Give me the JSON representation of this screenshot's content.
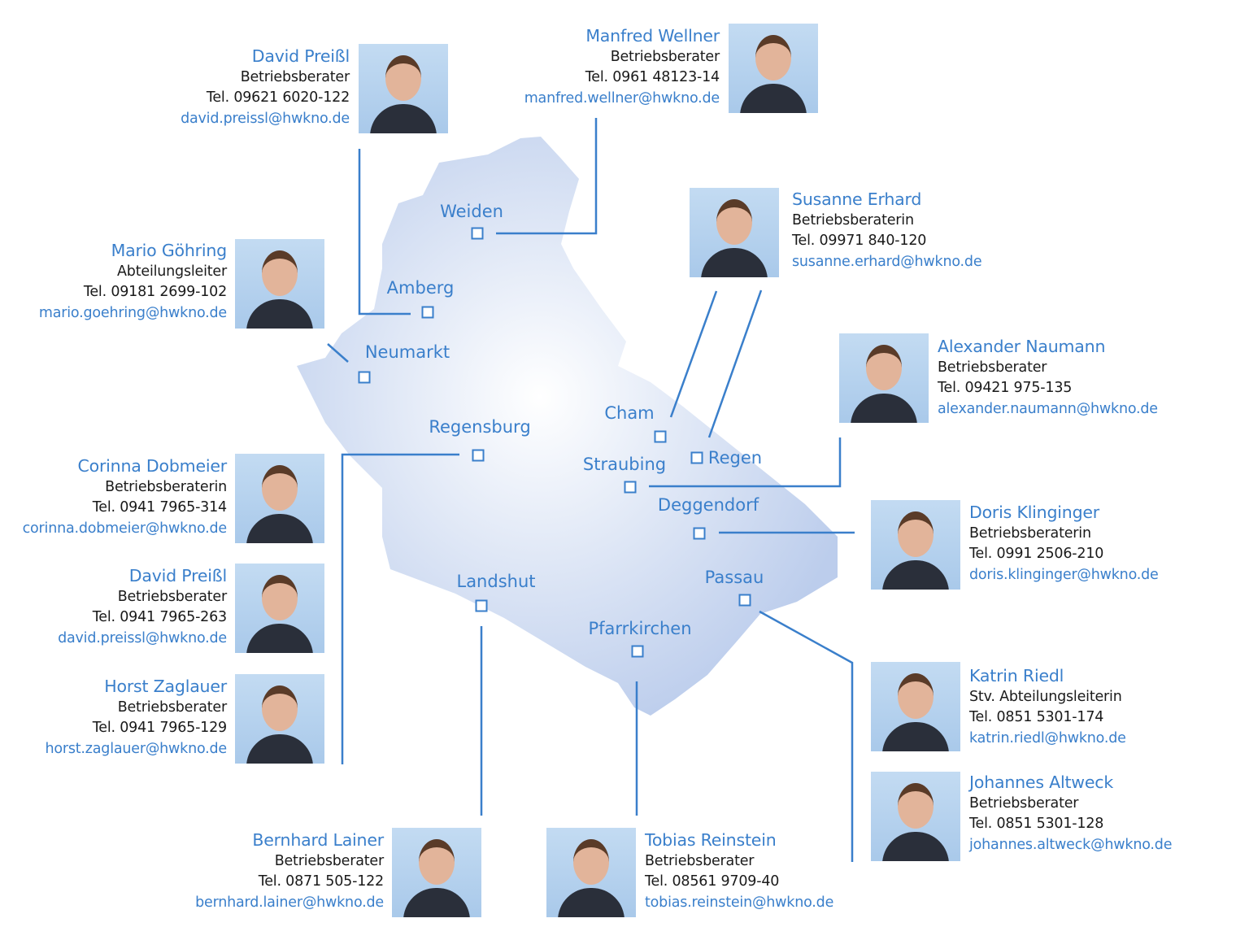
{
  "accent_color": "#3a7fcb",
  "cities": [
    "Weiden",
    "Amberg",
    "Neumarkt",
    "Regensburg",
    "Cham",
    "Regen",
    "Straubing",
    "Deggendorf",
    "Landshut",
    "Passau",
    "Pfarrkirchen"
  ],
  "contacts": [
    {
      "name": "David Preißl",
      "role": "Betriebsberater",
      "tel": "Tel. 09621 6020-122",
      "email": "david.preissl@hwkno.de"
    },
    {
      "name": "Manfred Wellner",
      "role": "Betriebsberater",
      "tel": "Tel. 0961 48123-14",
      "email": "manfred.wellner@hwkno.de"
    },
    {
      "name": "Susanne Erhard",
      "role": "Betriebsberaterin",
      "tel": "Tel. 09971 840-120",
      "email": "susanne.erhard@hwkno.de"
    },
    {
      "name": "Mario Göhring",
      "role": "Abteilungsleiter",
      "tel": "Tel. 09181 2699-102",
      "email": "mario.goehring@hwkno.de"
    },
    {
      "name": "Alexander Naumann",
      "role": "Betriebsberater",
      "tel": "Tel. 09421 975-135",
      "email": "alexander.naumann@hwkno.de"
    },
    {
      "name": "Corinna Dobmeier",
      "role": "Betriebsberaterin",
      "tel": "Tel. 0941 7965-314",
      "email": "corinna.dobmeier@hwkno.de"
    },
    {
      "name": "Doris Klinginger",
      "role": "Betriebsberaterin",
      "tel": "Tel. 0991 2506-210",
      "email": "doris.klinginger@hwkno.de"
    },
    {
      "name": "David Preißl",
      "role": "Betriebsberater",
      "tel": "Tel. 0941 7965-263",
      "email": "david.preissl@hwkno.de"
    },
    {
      "name": "Horst Zaglauer",
      "role": "Betriebsberater",
      "tel": "Tel. 0941 7965-129",
      "email": "horst.zaglauer@hwkno.de"
    },
    {
      "name": "Katrin Riedl",
      "role": "Stv. Abteilungsleiterin",
      "tel": "Tel. 0851 5301-174",
      "email": "katrin.riedl@hwkno.de"
    },
    {
      "name": "Johannes Altweck",
      "role": "Betriebsberater",
      "tel": "Tel. 0851 5301-128",
      "email": "johannes.altweck@hwkno.de"
    },
    {
      "name": "Bernhard Lainer",
      "role": "Betriebsberater",
      "tel": "Tel. 0871 505-122",
      "email": "bernhard.lainer@hwkno.de"
    },
    {
      "name": "Tobias Reinstein",
      "role": "Betriebsberater",
      "tel": "Tel. 08561 9709-40",
      "email": "tobias.reinstein@hwkno.de"
    }
  ]
}
